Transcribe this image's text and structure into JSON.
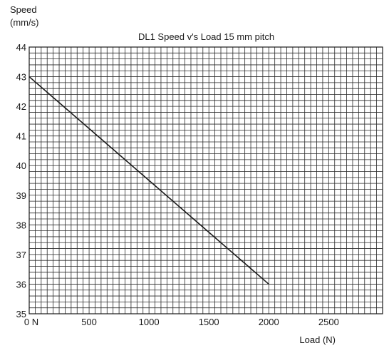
{
  "chart_data": {
    "type": "line",
    "title": "DL1 Speed v's Load 15 mm pitch",
    "ylabel_lines": [
      "Speed",
      "(mm/s)"
    ],
    "xlabel": "Load (N)",
    "xlim": [
      0,
      2950
    ],
    "ylim": [
      35,
      44
    ],
    "x_ticks": [
      {
        "value": 0,
        "label": "0 N"
      },
      {
        "value": 500,
        "label": "500"
      },
      {
        "value": 1000,
        "label": "1000"
      },
      {
        "value": 1500,
        "label": "1500"
      },
      {
        "value": 2000,
        "label": "2000"
      },
      {
        "value": 2500,
        "label": "2500"
      }
    ],
    "y_ticks": [
      {
        "value": 35,
        "label": "35"
      },
      {
        "value": 36,
        "label": "36"
      },
      {
        "value": 37,
        "label": "37"
      },
      {
        "value": 38,
        "label": "38"
      },
      {
        "value": 39,
        "label": "39"
      },
      {
        "value": 40,
        "label": "40"
      },
      {
        "value": 41,
        "label": "41"
      },
      {
        "value": 42,
        "label": "42"
      },
      {
        "value": 43,
        "label": "43"
      },
      {
        "value": 44,
        "label": "44"
      }
    ],
    "grid": true,
    "grid_minor_x_step": 50,
    "grid_minor_y_step": 0.2,
    "series": [
      {
        "x": [
          0,
          2000
        ],
        "y": [
          43,
          36
        ],
        "color": "#1a1a1a"
      }
    ]
  }
}
